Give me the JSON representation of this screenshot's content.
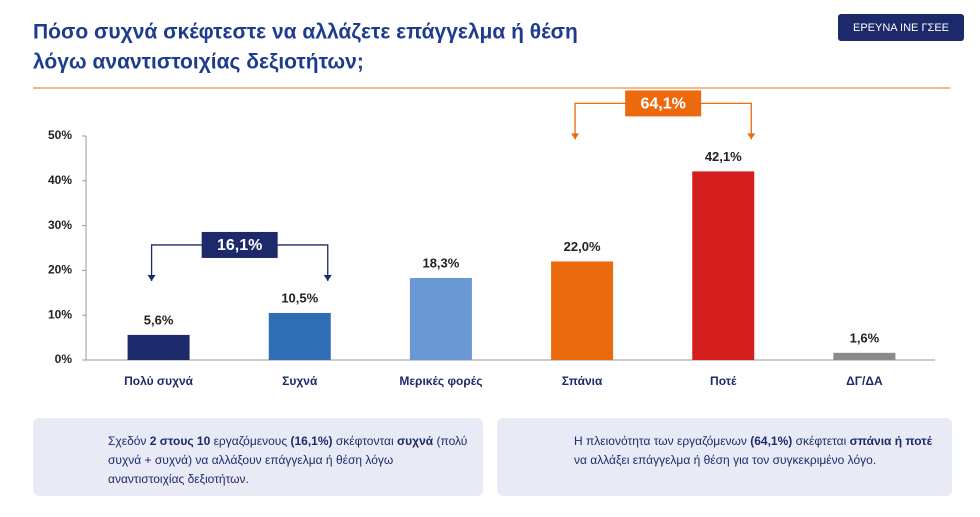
{
  "badge": "ΕΡΕΥΝΑ ΙΝΕ ΓΣΕΕ",
  "chart_data": {
    "type": "bar",
    "title": [
      "Πόσο συχνά σκέφτεστε να αλλάζετε επάγγελμα ή θέση",
      "λόγω αναντιστοιχίας δεξιοτήτων;"
    ],
    "categories": [
      "Πολύ συχνά",
      "Συχνά",
      "Μερικές φορές",
      "Σπάνια",
      "Ποτέ",
      "ΔΓ/ΔΑ"
    ],
    "values": [
      5.6,
      10.5,
      18.3,
      22.0,
      42.1,
      1.6
    ],
    "value_labels": [
      "5,6%",
      "10,5%",
      "18,3%",
      "22,0%",
      "42,1%",
      "1,6%"
    ],
    "colors": [
      "#1c2a6b",
      "#2f6db5",
      "#6a98d4",
      "#ec6a0e",
      "#d51f1f",
      "#8a8a8a"
    ],
    "ylim": [
      0,
      50
    ],
    "yticks": [
      {
        "value": 0,
        "label": "0%"
      },
      {
        "value": 10,
        "label": "10%"
      },
      {
        "value": 20,
        "label": "20%"
      },
      {
        "value": 30,
        "label": "30%"
      },
      {
        "value": 40,
        "label": "40%"
      },
      {
        "value": 50,
        "label": "50%"
      }
    ],
    "grid": false,
    "annotations": [
      {
        "text": "16,1%",
        "color": "#1c2a6b"
      },
      {
        "text": "64,1%",
        "color": "#ec6a0e"
      }
    ]
  },
  "notes": [
    {
      "color": "#1c2a6b",
      "parts": [
        {
          "text": "Σχεδόν "
        },
        {
          "text": "2 στους 10",
          "bold": true
        },
        {
          "text": " εργαζόμενους "
        },
        {
          "text": "(16,1%)",
          "bold": true
        },
        {
          "text": " σκέφτονται "
        },
        {
          "text": "συχνά",
          "bold": true
        },
        {
          "text": " (πολύ συχνά + συχνά) να αλλάξουν επάγγελμα ή θέση λόγω αναντιστοιχίας δεξιοτήτων."
        }
      ]
    },
    {
      "color": "#ec8a12",
      "parts": [
        {
          "text": "Η πλειονότητα των εργαζόμενων "
        },
        {
          "text": "(64,1%)",
          "bold": true
        },
        {
          "text": " σκέφτεται "
        },
        {
          "text": "σπάνια ή ποτέ",
          "bold": true
        },
        {
          "text": " να αλλάξει επάγγελμα ή θέση για τον συγκεκριμένο λόγο."
        }
      ]
    }
  ]
}
